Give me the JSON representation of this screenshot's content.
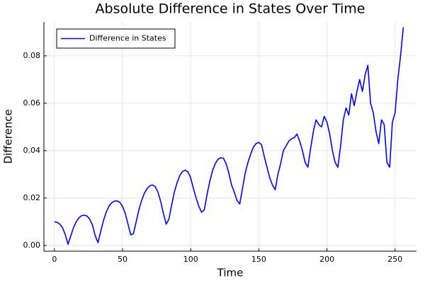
{
  "chart_data": {
    "type": "line",
    "title": "Absolute Difference in States Over Time",
    "x_label": "Time",
    "y_label": "Difference",
    "x": [
      0,
      2,
      4,
      6,
      8,
      10,
      12,
      14,
      16,
      18,
      20,
      22,
      24,
      26,
      28,
      30,
      32,
      34,
      36,
      38,
      40,
      42,
      44,
      46,
      48,
      50,
      52,
      54,
      56,
      58,
      60,
      62,
      64,
      66,
      68,
      70,
      72,
      74,
      76,
      78,
      80,
      82,
      84,
      86,
      88,
      90,
      92,
      94,
      96,
      98,
      100,
      102,
      104,
      106,
      108,
      110,
      112,
      114,
      116,
      118,
      120,
      122,
      124,
      126,
      128,
      130,
      132,
      134,
      136,
      138,
      140,
      142,
      144,
      146,
      148,
      150,
      152,
      154,
      156,
      158,
      160,
      162,
      164,
      166,
      168,
      170,
      172,
      174,
      176,
      178,
      180,
      182,
      184,
      186,
      188,
      190,
      192,
      194,
      196,
      198,
      200,
      202,
      204,
      206,
      208,
      210,
      212,
      214,
      216,
      218,
      220,
      222,
      224,
      226,
      228,
      230,
      232,
      234,
      236,
      238,
      240,
      242,
      244,
      246,
      248,
      250,
      252,
      254,
      256
    ],
    "series": [
      {
        "name": "Difference in States",
        "color": "#0000ff",
        "values": [
          0.01,
          0.0098,
          0.009,
          0.0075,
          0.0045,
          0.0005,
          0.004,
          0.0075,
          0.01,
          0.0117,
          0.0126,
          0.0128,
          0.0124,
          0.011,
          0.0085,
          0.004,
          0.0012,
          0.006,
          0.0105,
          0.014,
          0.0165,
          0.018,
          0.0187,
          0.0188,
          0.0182,
          0.0165,
          0.0135,
          0.009,
          0.0045,
          0.005,
          0.01,
          0.015,
          0.019,
          0.022,
          0.024,
          0.0252,
          0.0255,
          0.0248,
          0.0225,
          0.0185,
          0.0135,
          0.009,
          0.011,
          0.017,
          0.0225,
          0.0265,
          0.0295,
          0.0312,
          0.0318,
          0.031,
          0.0285,
          0.024,
          0.02,
          0.0165,
          0.014,
          0.015,
          0.0215,
          0.027,
          0.0315,
          0.0345,
          0.0363,
          0.037,
          0.0368,
          0.0345,
          0.0305,
          0.0255,
          0.0225,
          0.019,
          0.0175,
          0.024,
          0.0305,
          0.035,
          0.0385,
          0.0415,
          0.043,
          0.0435,
          0.0425,
          0.0375,
          0.033,
          0.0285,
          0.0255,
          0.0235,
          0.03,
          0.0345,
          0.04,
          0.042,
          0.044,
          0.045,
          0.0455,
          0.047,
          0.044,
          0.04,
          0.035,
          0.033,
          0.041,
          0.048,
          0.053,
          0.051,
          0.05,
          0.0545,
          0.052,
          0.047,
          0.04,
          0.035,
          0.033,
          0.042,
          0.053,
          0.058,
          0.055,
          0.064,
          0.059,
          0.065,
          0.07,
          0.065,
          0.072,
          0.076,
          0.06,
          0.056,
          0.048,
          0.043,
          0.053,
          0.051,
          0.035,
          0.033,
          0.052,
          0.056,
          0.07,
          0.08,
          0.092
        ]
      }
    ],
    "xlim": [
      -7.7,
      265.7
    ],
    "ylim": [
      -0.0024,
      0.0943
    ],
    "xticks": [
      0,
      50,
      100,
      150,
      200,
      250
    ],
    "yticks": [
      {
        "value": 0,
        "label": "0.00"
      },
      {
        "value": 0.02,
        "label": "0.02"
      },
      {
        "value": 0.04,
        "label": "0.04"
      },
      {
        "value": 0.06,
        "label": "0.06"
      },
      {
        "value": 0.08,
        "label": "0.08"
      }
    ],
    "grid": true,
    "legend": "top-left"
  }
}
